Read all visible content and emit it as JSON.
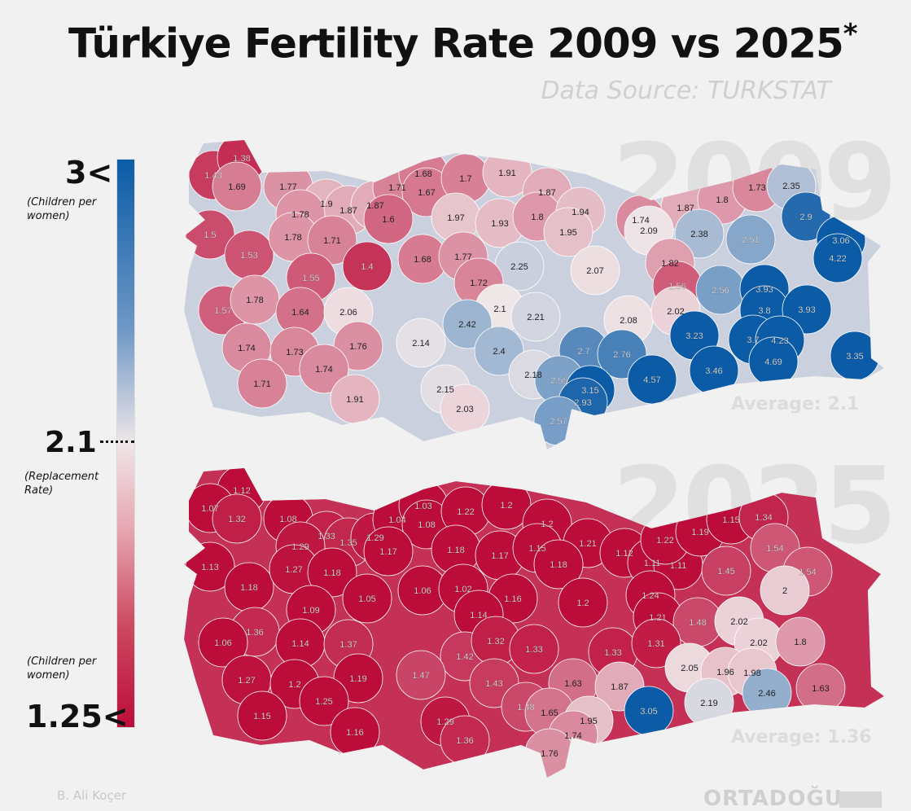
{
  "title": "Türkiye Fertility Rate 2009 vs 2025",
  "title_mark": "*",
  "source": "Data Source: TURKSTAT",
  "legend": {
    "top_label": "3<",
    "top_note": "(Children per women)",
    "mid_label": "2.1",
    "mid_note": "(Replacement Rate)",
    "bottom_note": "(Children per women)",
    "bottom_label": "1.25<",
    "scale": {
      "min": 1.25,
      "mid": 2.1,
      "max": 3,
      "color_min": "#bc0d3a",
      "color_mid": "#efe6e8",
      "color_max": "#0b5ba6"
    }
  },
  "maps": [
    {
      "year": "2009",
      "average": "Average: 2.1",
      "values": [
        "1.43",
        "1.38",
        "1.69",
        "1.77",
        "1.9",
        "1.87",
        "1.87",
        "1.78",
        "1.71",
        "1.68",
        "1.67",
        "1.7",
        "1.91",
        "1.6",
        "1.97",
        "1.93",
        "1.87",
        "1.8",
        "1.94",
        "1.95",
        "1.74",
        "1.87",
        "1.8",
        "1.73",
        "2.35",
        "2.09",
        "2.38",
        "2.51",
        "2.9",
        "3.06",
        "4.22",
        "1.5",
        "1.53",
        "1.78",
        "1.71",
        "1.4",
        "1.68",
        "1.77",
        "2.25",
        "2.07",
        "1.82",
        "1.72",
        "1.55",
        "1.56",
        "2.56",
        "3.93",
        "1.57",
        "1.78",
        "1.64",
        "2.06",
        "2.1",
        "2.21",
        "2.42",
        "2.08",
        "2.02",
        "3.8",
        "3.93",
        "1.74",
        "1.73",
        "1.76",
        "2.14",
        "2.4",
        "2.7",
        "2.76",
        "3.23",
        "3.7",
        "4.23",
        "3.35",
        "1.74",
        "2.18",
        "2.55",
        "3.15",
        "4.57",
        "3.46",
        "4.69",
        "1.71",
        "2.15",
        "2.93",
        "2.57",
        "1.91",
        "2.03"
      ]
    },
    {
      "year": "2025",
      "average": "Average: 1.36",
      "values": [
        "1.12",
        "1.07",
        "1.32",
        "1.08",
        "1.33",
        "1.35",
        "1.29",
        "1.29",
        "1.04",
        "1.03",
        "1.08",
        "1.22",
        "1.2",
        "1.17",
        "1.18",
        "1.17",
        "1.2",
        "1.15",
        "1.21",
        "1.18",
        "1.12",
        "1.11",
        "1.11",
        "1.22",
        "1.19",
        "1.15",
        "1.34",
        "1.45",
        "1.54",
        "1.54",
        "2",
        "1.13",
        "1.18",
        "1.27",
        "1.18",
        "1.05",
        "1.06",
        "1.02",
        "1.16",
        "1.2",
        "1.24",
        "1.21",
        "1.48",
        "2.02",
        "2.02",
        "1.8",
        "1.09",
        "1.14",
        "1.36",
        "1.06",
        "1.14",
        "1.37",
        "1.42",
        "1.32",
        "1.33",
        "1.33",
        "1.31",
        "2.05",
        "1.96",
        "1.98",
        "1.27",
        "1.2",
        "1.19",
        "1.47",
        "1.43",
        "1.63",
        "1.87",
        "2.19",
        "2.46",
        "1.63",
        "1.25",
        "1.48",
        "1.65",
        "1.95",
        "3.05",
        "1.74",
        "1.15",
        "1.16",
        "1.29",
        "1.36",
        "1.76"
      ]
    }
  ],
  "author": "B. Ali Koçer",
  "logo": "ORTADOĞU"
}
